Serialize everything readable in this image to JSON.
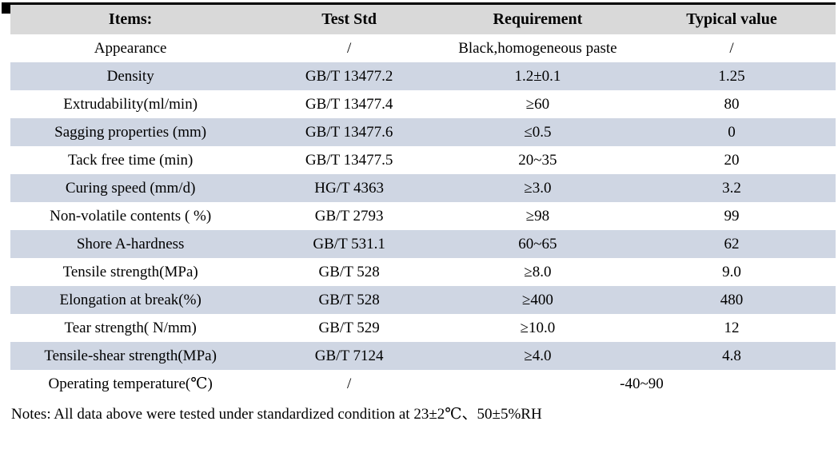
{
  "table": {
    "columns": [
      "Items:",
      "Test Std",
      "Requirement",
      "Typical value"
    ],
    "rows": [
      {
        "item": "Appearance",
        "std": "/",
        "req": "Black,homogeneous paste",
        "typ": "/"
      },
      {
        "item": "Density",
        "std": "GB/T 13477.2",
        "req": "1.2±0.1",
        "typ": "1.25"
      },
      {
        "item": "Extrudability(ml/min)",
        "std": "GB/T 13477.4",
        "req": "≥60",
        "typ": "80"
      },
      {
        "item": "Sagging properties (mm)",
        "std": "GB/T 13477.6",
        "req": "≤0.5",
        "typ": "0"
      },
      {
        "item": "Tack free time (min)",
        "std": "GB/T 13477.5",
        "req": "20~35",
        "typ": "20"
      },
      {
        "item": "Curing speed (mm/d)",
        "std": "HG/T 4363",
        "req": "≥3.0",
        "typ": "3.2"
      },
      {
        "item": "Non-volatile contents ( %)",
        "std": "GB/T 2793",
        "req": "≥98",
        "typ": "99"
      },
      {
        "item": "Shore A-hardness",
        "std": "GB/T 531.1",
        "req": "60~65",
        "typ": "62"
      },
      {
        "item": "Tensile strength(MPa)",
        "std": "GB/T 528",
        "req": "≥8.0",
        "typ": "9.0"
      },
      {
        "item": "Elongation at break(%)",
        "std": "GB/T 528",
        "req": "≥400",
        "typ": "480"
      },
      {
        "item": "Tear strength( N/mm)",
        "std": "GB/T 529",
        "req": "≥10.0",
        "typ": "12"
      },
      {
        "item": "Tensile-shear strength(MPa)",
        "std": "GB/T 7124",
        "req": "≥4.0",
        "typ": "4.8"
      },
      {
        "item": "Operating temperature(℃)",
        "std": "/",
        "req": "-40~90",
        "req_colspan": 2
      }
    ]
  },
  "notes": "Notes: All data above were tested under standardized condition at 23±2℃、50±5%RH",
  "colors": {
    "header_bg": "#d9d9d9",
    "stripe_bg": "#cfd6e3",
    "border_top": "#000000",
    "text": "#000000"
  }
}
